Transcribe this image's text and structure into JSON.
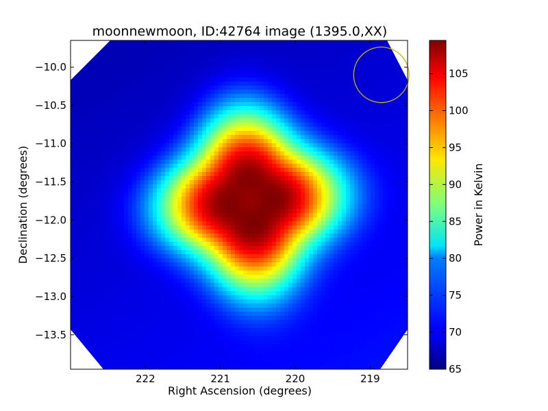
{
  "chart_data": {
    "type": "heatmap",
    "title": "moonnewmoon, ID:42764 image (1395.0,XX)",
    "xlabel": "Right Ascension (degrees)",
    "ylabel": "Declination (degrees)",
    "xlim": [
      223.0,
      218.5
    ],
    "ylim": [
      -13.95,
      -9.65
    ],
    "x_ticks": [
      222,
      221,
      220,
      219
    ],
    "x_tick_labels": [
      "222",
      "221",
      "220",
      "219"
    ],
    "y_ticks": [
      -10.0,
      -10.5,
      -11.0,
      -11.5,
      -12.0,
      -12.5,
      -13.0,
      -13.5
    ],
    "y_tick_labels": [
      "−10.0",
      "−10.5",
      "−11.0",
      "−11.5",
      "−12.0",
      "−12.5",
      "−13.0",
      "−13.5"
    ],
    "colorbar": {
      "label": "Power in Kelvin",
      "range": [
        65,
        109.5
      ],
      "ticks": [
        65,
        70,
        75,
        80,
        85,
        90,
        95,
        100,
        105
      ],
      "tick_labels": [
        "65",
        "70",
        "75",
        "80",
        "85",
        "90",
        "95",
        "100",
        "105"
      ],
      "colormap": "jet"
    },
    "features": [
      {
        "type": "source",
        "ra": 220.6,
        "dec": -11.75,
        "peak": 109,
        "background": 67
      },
      {
        "type": "circle",
        "ra": 218.85,
        "dec": -10.1,
        "radius_deg": 0.37,
        "color": "#c8b400"
      }
    ],
    "grid": false
  }
}
